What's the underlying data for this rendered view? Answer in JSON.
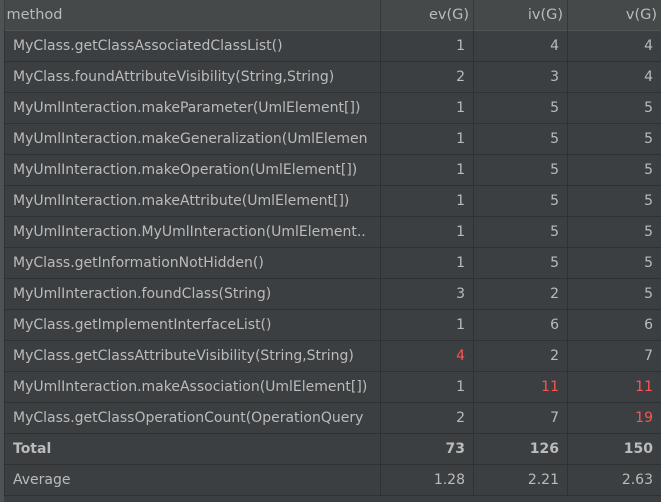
{
  "columns": [
    "method",
    "ev(G)",
    "iv(G)",
    "v(G)"
  ],
  "sort": {
    "column": "iv(G)",
    "direction": "ascending",
    "icon": "sort-ascending-icon"
  },
  "colors": {
    "text": "#bbbbbb",
    "warning": "#ff5252",
    "background": "#3c3f41",
    "header": "#45494a"
  },
  "rows": [
    {
      "method": "MyClass.getClassAssociatedClassList()",
      "ev": "1",
      "iv": "4",
      "v": "4"
    },
    {
      "method": "MyClass.foundAttributeVisibility(String,String)",
      "ev": "2",
      "iv": "3",
      "v": "4"
    },
    {
      "method": "MyUmlInteraction.makeParameter(UmlElement[])",
      "ev": "1",
      "iv": "5",
      "v": "5"
    },
    {
      "method": "MyUmlInteraction.makeGeneralization(UmlElemen",
      "ev": "1",
      "iv": "5",
      "v": "5"
    },
    {
      "method": "MyUmlInteraction.makeOperation(UmlElement[])",
      "ev": "1",
      "iv": "5",
      "v": "5"
    },
    {
      "method": "MyUmlInteraction.makeAttribute(UmlElement[])",
      "ev": "1",
      "iv": "5",
      "v": "5"
    },
    {
      "method": "MyUmlInteraction.MyUmlInteraction(UmlElement..",
      "ev": "1",
      "iv": "5",
      "v": "5"
    },
    {
      "method": "MyClass.getInformationNotHidden()",
      "ev": "1",
      "iv": "5",
      "v": "5"
    },
    {
      "method": "MyUmlInteraction.foundClass(String)",
      "ev": "3",
      "iv": "2",
      "v": "5"
    },
    {
      "method": "MyClass.getImplementInterfaceList()",
      "ev": "1",
      "iv": "6",
      "v": "6"
    },
    {
      "method": "MyClass.getClassAttributeVisibility(String,String)",
      "ev": "4",
      "iv": "2",
      "v": "7",
      "ev_red": true
    },
    {
      "method": "MyUmlInteraction.makeAssociation(UmlElement[])",
      "ev": "1",
      "iv": "11",
      "v": "11",
      "iv_red": true,
      "v_red": true
    },
    {
      "method": "MyClass.getClassOperationCount(OperationQuery",
      "ev": "2",
      "iv": "7",
      "v": "19",
      "v_red": true
    }
  ],
  "total": {
    "label": "Total",
    "ev": "73",
    "iv": "126",
    "v": "150"
  },
  "average": {
    "label": "Average",
    "ev": "1.28",
    "iv": "2.21",
    "v": "2.63"
  }
}
